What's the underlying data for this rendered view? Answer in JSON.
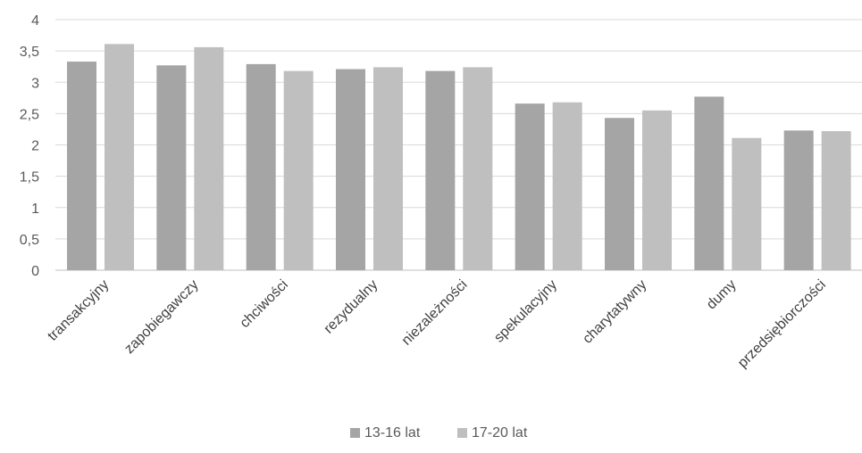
{
  "chart_data": {
    "type": "bar",
    "categories": [
      "transakcyjny",
      "zapobiegawczy",
      "chciwości",
      "rezydualny",
      "niezależności",
      "spekulacyjny",
      "charytatywny",
      "dumy",
      "przedsiębiorczości"
    ],
    "series": [
      {
        "name": "13-16 lat",
        "color": "#a5a5a5",
        "values": [
          3.33,
          3.27,
          3.29,
          3.21,
          3.18,
          2.66,
          2.43,
          2.77,
          2.23
        ]
      },
      {
        "name": "17-20 lat",
        "color": "#bfbfbf",
        "values": [
          3.61,
          3.56,
          3.18,
          3.24,
          3.24,
          2.68,
          2.55,
          2.11,
          2.22
        ]
      }
    ],
    "yticks": [
      "0",
      "0,5",
      "1",
      "1,5",
      "2",
      "2,5",
      "3",
      "3,5",
      "4"
    ],
    "ylim": [
      0,
      4
    ],
    "grid": true,
    "legend_position": "bottom"
  }
}
